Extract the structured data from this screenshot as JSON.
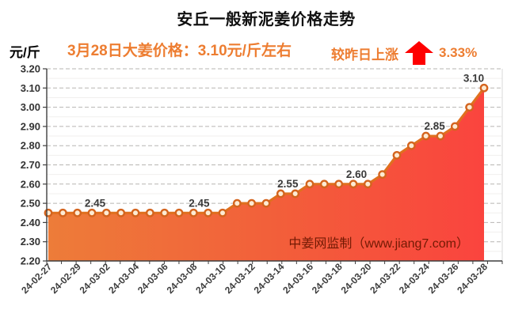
{
  "header": {
    "title": "安丘一般新泥姜价格走势",
    "unit_label": "元/斤",
    "subtitle": "3月28日大姜价格：3.10元/斤左右",
    "change_label": "较昨日上涨",
    "change_value": "3.33%",
    "arrow_icon": "up-arrow",
    "colors": {
      "accent_orange": "#ED7D31",
      "arrow_red": "#FE0000"
    }
  },
  "watermark": {
    "text": "中姜网监制（www.jiang7.com）",
    "color": "#731A04"
  },
  "chart_data": {
    "type": "area",
    "title": "安丘一般新泥姜价格走势",
    "xlabel": "",
    "ylabel": "元/斤",
    "ylim": [
      2.2,
      3.2
    ],
    "ytick_step": 0.1,
    "grid": "dashed-horizontal-major, light-minor-0.05",
    "legend": "none",
    "x": [
      "24-02-27",
      "24-02-28",
      "24-02-29",
      "24-03-01",
      "24-03-02",
      "24-03-03",
      "24-03-04",
      "24-03-05",
      "24-03-06",
      "24-03-07",
      "24-03-08",
      "24-03-09",
      "24-03-10",
      "24-03-11",
      "24-03-12",
      "24-03-13",
      "24-03-14",
      "24-03-15",
      "24-03-16",
      "24-03-17",
      "24-03-18",
      "24-03-19",
      "24-03-20",
      "24-03-21",
      "24-03-22",
      "24-03-23",
      "24-03-24",
      "24-03-25",
      "24-03-26",
      "24-03-27",
      "24-03-28"
    ],
    "values": [
      2.45,
      2.45,
      2.45,
      2.45,
      2.45,
      2.45,
      2.45,
      2.45,
      2.45,
      2.45,
      2.45,
      2.45,
      2.45,
      2.5,
      2.5,
      2.5,
      2.55,
      2.55,
      2.6,
      2.6,
      2.6,
      2.6,
      2.6,
      2.65,
      2.75,
      2.8,
      2.85,
      2.85,
      2.9,
      3.0,
      3.1
    ],
    "xtick_every": 2,
    "xtick_labels": [
      "24-02-27",
      "24-02-29",
      "24-03-02",
      "24-03-04",
      "24-03-06",
      "24-03-08",
      "24-03-10",
      "24-03-12",
      "24-03-14",
      "24-03-16",
      "24-03-18",
      "24-03-20",
      "24-03-22",
      "24-03-24",
      "24-03-26",
      "24-03-28"
    ],
    "data_labels": [
      {
        "index": 3,
        "text": "2.45"
      },
      {
        "index": 10,
        "text": "2.45"
      },
      {
        "index": 16,
        "text": "2.55"
      },
      {
        "index": 21,
        "text": "2.60"
      },
      {
        "index": 26,
        "text": "2.85"
      },
      {
        "index": 30,
        "text": "3.10"
      }
    ],
    "line_color": "#E0701F",
    "marker": {
      "shape": "circle",
      "fill": "#FDEBD3",
      "ring": "#D4641E"
    },
    "area_gradient": [
      "#ED7C39",
      "#F2603A",
      "#FA443E"
    ]
  }
}
